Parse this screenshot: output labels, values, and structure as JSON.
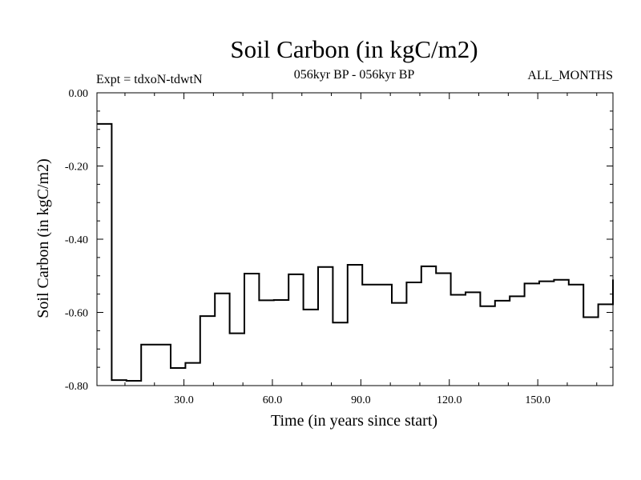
{
  "chart_data": {
    "type": "line",
    "step": true,
    "title": "Soil Carbon (in kgC/m2)",
    "subtitle_left": "Expt = tdxoN-tdwtN",
    "subtitle_center": "056kyr BP - 056kyr BP",
    "subtitle_right": "ALL_MONTHS",
    "xlabel": "Time (in years since start)",
    "ylabel": "Soil Carbon (in kgC/m2)",
    "xlim": [
      0.5,
      175.5
    ],
    "ylim": [
      -0.8,
      0.0
    ],
    "x_ticks": [
      30,
      60,
      90,
      120,
      150
    ],
    "x_tick_labels": [
      "30.0",
      "60.0",
      "90.0",
      "120.0",
      "150.0"
    ],
    "y_ticks": [
      0.0,
      -0.2,
      -0.4,
      -0.6,
      -0.8
    ],
    "y_tick_labels": [
      "0.00",
      "-0.20",
      "-0.40",
      "-0.60",
      "-0.80"
    ],
    "series": [
      {
        "name": "Soil Carbon",
        "color": "#000000",
        "points": [
          [
            0.5,
            -0.085
          ],
          [
            5.5,
            -0.155
          ],
          [
            5.5,
            -0.785
          ],
          [
            10.5,
            -0.787
          ],
          [
            15.5,
            -0.688
          ],
          [
            20.5,
            -0.688
          ],
          [
            25.5,
            -0.752
          ],
          [
            30.5,
            -0.738
          ],
          [
            35.5,
            -0.61
          ],
          [
            40.5,
            -0.548
          ],
          [
            45.5,
            -0.657
          ],
          [
            50.5,
            -0.494
          ],
          [
            55.5,
            -0.567
          ],
          [
            60.5,
            -0.566
          ],
          [
            65.5,
            -0.496
          ],
          [
            70.5,
            -0.592
          ],
          [
            75.5,
            -0.476
          ],
          [
            80.5,
            -0.628
          ],
          [
            85.5,
            -0.47
          ],
          [
            90.5,
            -0.524
          ],
          [
            95.5,
            -0.524
          ],
          [
            100.5,
            -0.574
          ],
          [
            105.5,
            -0.518
          ],
          [
            110.5,
            -0.474
          ],
          [
            115.5,
            -0.493
          ],
          [
            120.5,
            -0.552
          ],
          [
            125.5,
            -0.545
          ],
          [
            130.5,
            -0.583
          ],
          [
            135.5,
            -0.568
          ],
          [
            140.5,
            -0.556
          ],
          [
            145.5,
            -0.521
          ],
          [
            150.5,
            -0.515
          ],
          [
            155.5,
            -0.511
          ],
          [
            160.5,
            -0.524
          ],
          [
            165.5,
            -0.613
          ],
          [
            170.5,
            -0.578
          ],
          [
            175.5,
            -0.51
          ]
        ]
      }
    ]
  }
}
